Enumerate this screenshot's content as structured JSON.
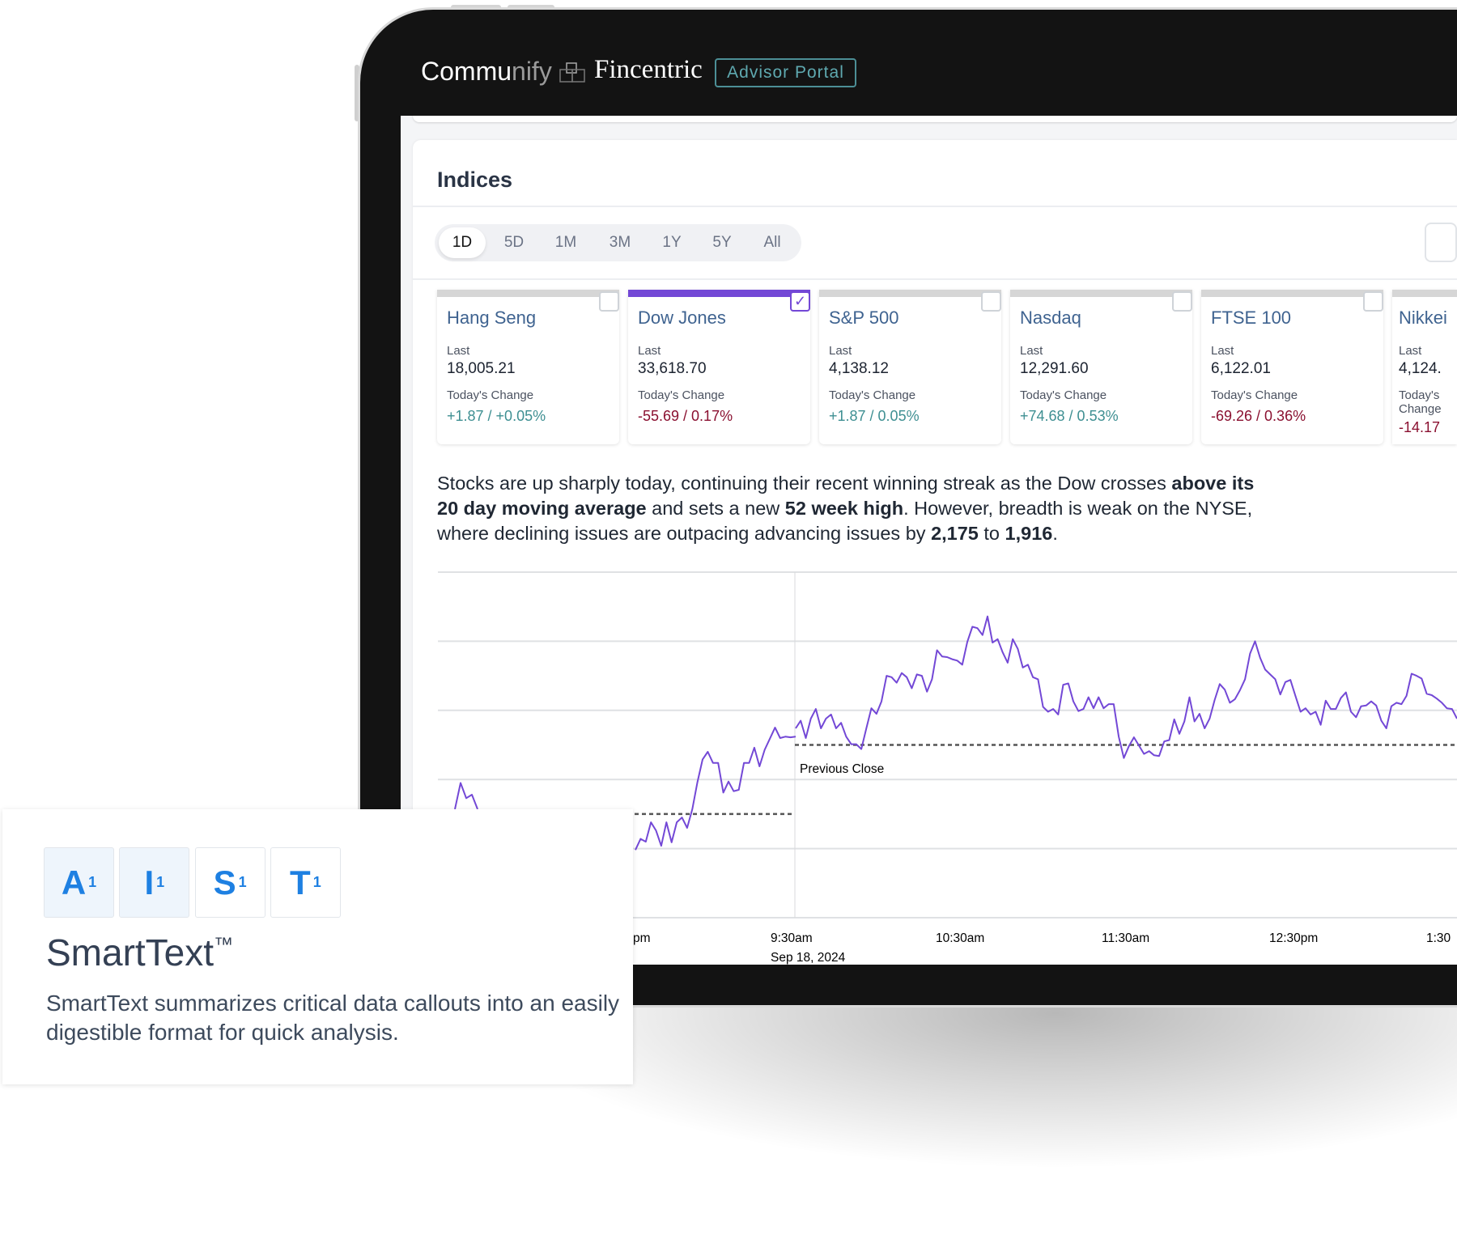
{
  "header": {
    "logo_part1": "Commu",
    "logo_part2": "nify",
    "logo_part3": "Fincentric",
    "badge": "Advisor Portal"
  },
  "indices": {
    "title": "Indices",
    "periods": [
      {
        "label": "1D",
        "active": true
      },
      {
        "label": "5D"
      },
      {
        "label": "1M"
      },
      {
        "label": "3M"
      },
      {
        "label": "1Y"
      },
      {
        "label": "5Y"
      },
      {
        "label": "All"
      }
    ],
    "last_label": "Last",
    "change_label": "Today's Change",
    "cards": [
      {
        "name": "Hang Seng",
        "last": "18,005.21",
        "change": "+1.87 / +0.05%",
        "direction": "up",
        "selected": false
      },
      {
        "name": "Dow Jones",
        "last": "33,618.70",
        "change": "-55.69 / 0.17%",
        "direction": "down",
        "selected": true
      },
      {
        "name": "S&P 500",
        "last": "4,138.12",
        "change": "+1.87 / 0.05%",
        "direction": "up",
        "selected": false
      },
      {
        "name": "Nasdaq",
        "last": "12,291.60",
        "change": "+74.68 / 0.53%",
        "direction": "up",
        "selected": false
      },
      {
        "name": "FTSE 100",
        "last": "6,122.01",
        "change": "-69.26 / 0.36%",
        "direction": "down",
        "selected": false
      },
      {
        "name": "Nikkei",
        "last": "4,124.",
        "change": "-14.17",
        "direction": "down",
        "selected": false
      }
    ],
    "summary": [
      {
        "text": "Stocks are up sharply today, continuing their recent winning streak as the Dow crosses ",
        "bold": false
      },
      {
        "text": "above its 20 day moving average",
        "bold": true
      },
      {
        "text": " and sets a new ",
        "bold": false
      },
      {
        "text": "52 week high",
        "bold": true
      },
      {
        "text": ". However, breadth is weak on the NYSE, where declining issues are outpacing advancing issues by ",
        "bold": false
      },
      {
        "text": "2,175",
        "bold": true
      },
      {
        "text": " to ",
        "bold": false
      },
      {
        "text": "1,916",
        "bold": true
      },
      {
        "text": ".",
        "bold": false
      }
    ]
  },
  "chart_data": {
    "type": "line",
    "color": "#7348d6",
    "grid": true,
    "ylim": [
      0,
      5
    ],
    "x_tick_labels": [
      "pm",
      "9:30am",
      "10:30am",
      "11:30am",
      "12:30pm",
      "1:30"
    ],
    "date_label": "Sep 18, 2024",
    "reference_line": {
      "label": "Previous Close",
      "value": 2.5
    },
    "prior_reference_value": 1.5,
    "prior_session_start": [
      1.57,
      1.95,
      1.73,
      1.78,
      1.57
    ],
    "prior_session_end": [
      0.98,
      1.14,
      1.1,
      1.38,
      1.26,
      1.04,
      1.38,
      1.09,
      1.38,
      1.45,
      1.3,
      1.57,
      1.96,
      2.29,
      2.4,
      2.24,
      2.24,
      1.81,
      1.97,
      1.83,
      1.85,
      2.24,
      2.24,
      2.46,
      2.19,
      2.43,
      2.59,
      2.75,
      2.6,
      2.62,
      2.61,
      2.62
    ],
    "session": [
      2.74,
      2.85,
      2.6,
      2.88,
      3.02,
      2.74,
      2.88,
      2.94,
      2.74,
      2.82,
      2.62,
      2.51,
      2.51,
      2.44,
      2.74,
      3.03,
      2.95,
      3.13,
      3.5,
      3.48,
      3.4,
      3.54,
      3.48,
      3.32,
      3.52,
      3.5,
      3.27,
      3.45,
      3.87,
      3.78,
      3.77,
      3.74,
      3.72,
      3.66,
      3.99,
      4.21,
      4.19,
      4.09,
      4.36,
      3.98,
      4.03,
      3.84,
      3.69,
      4.03,
      3.89,
      3.62,
      3.66,
      3.48,
      3.45,
      3.05,
      2.98,
      3.02,
      2.94,
      3.37,
      3.39,
      3.13,
      2.99,
      3.02,
      3.19,
      3.03,
      3.19,
      3.03,
      3.09,
      3.09,
      2.62,
      2.31,
      2.48,
      2.61,
      2.49,
      2.37,
      2.41,
      2.35,
      2.34,
      2.55,
      2.57,
      2.87,
      2.66,
      2.84,
      3.19,
      2.84,
      2.95,
      2.74,
      2.88,
      3.15,
      3.38,
      3.3,
      3.11,
      3.16,
      3.29,
      3.45,
      3.82,
      4.0,
      3.76,
      3.59,
      3.52,
      3.45,
      3.23,
      3.41,
      3.44,
      3.21,
      2.98,
      3.03,
      2.94,
      2.98,
      2.79,
      3.14,
      3.02,
      3.02,
      3.18,
      3.26,
      2.98,
      2.9,
      3.06,
      3.07,
      3.13,
      3.07,
      2.85,
      2.74,
      3.06,
      3.11,
      3.09,
      3.21,
      3.53,
      3.5,
      3.46,
      3.24,
      3.22,
      3.17,
      3.11,
      3.03,
      3.02,
      2.88
    ]
  },
  "smarttext": {
    "tiles": [
      {
        "letter": "A",
        "sub": "1"
      },
      {
        "letter": "I",
        "sub": "1"
      },
      {
        "letter": "S",
        "sub": "1"
      },
      {
        "letter": "T",
        "sub": "1"
      }
    ],
    "title": "SmartText",
    "trademark": "™",
    "description": "SmartText summarizes critical data callouts into an easily digestible format for quick analysis."
  }
}
